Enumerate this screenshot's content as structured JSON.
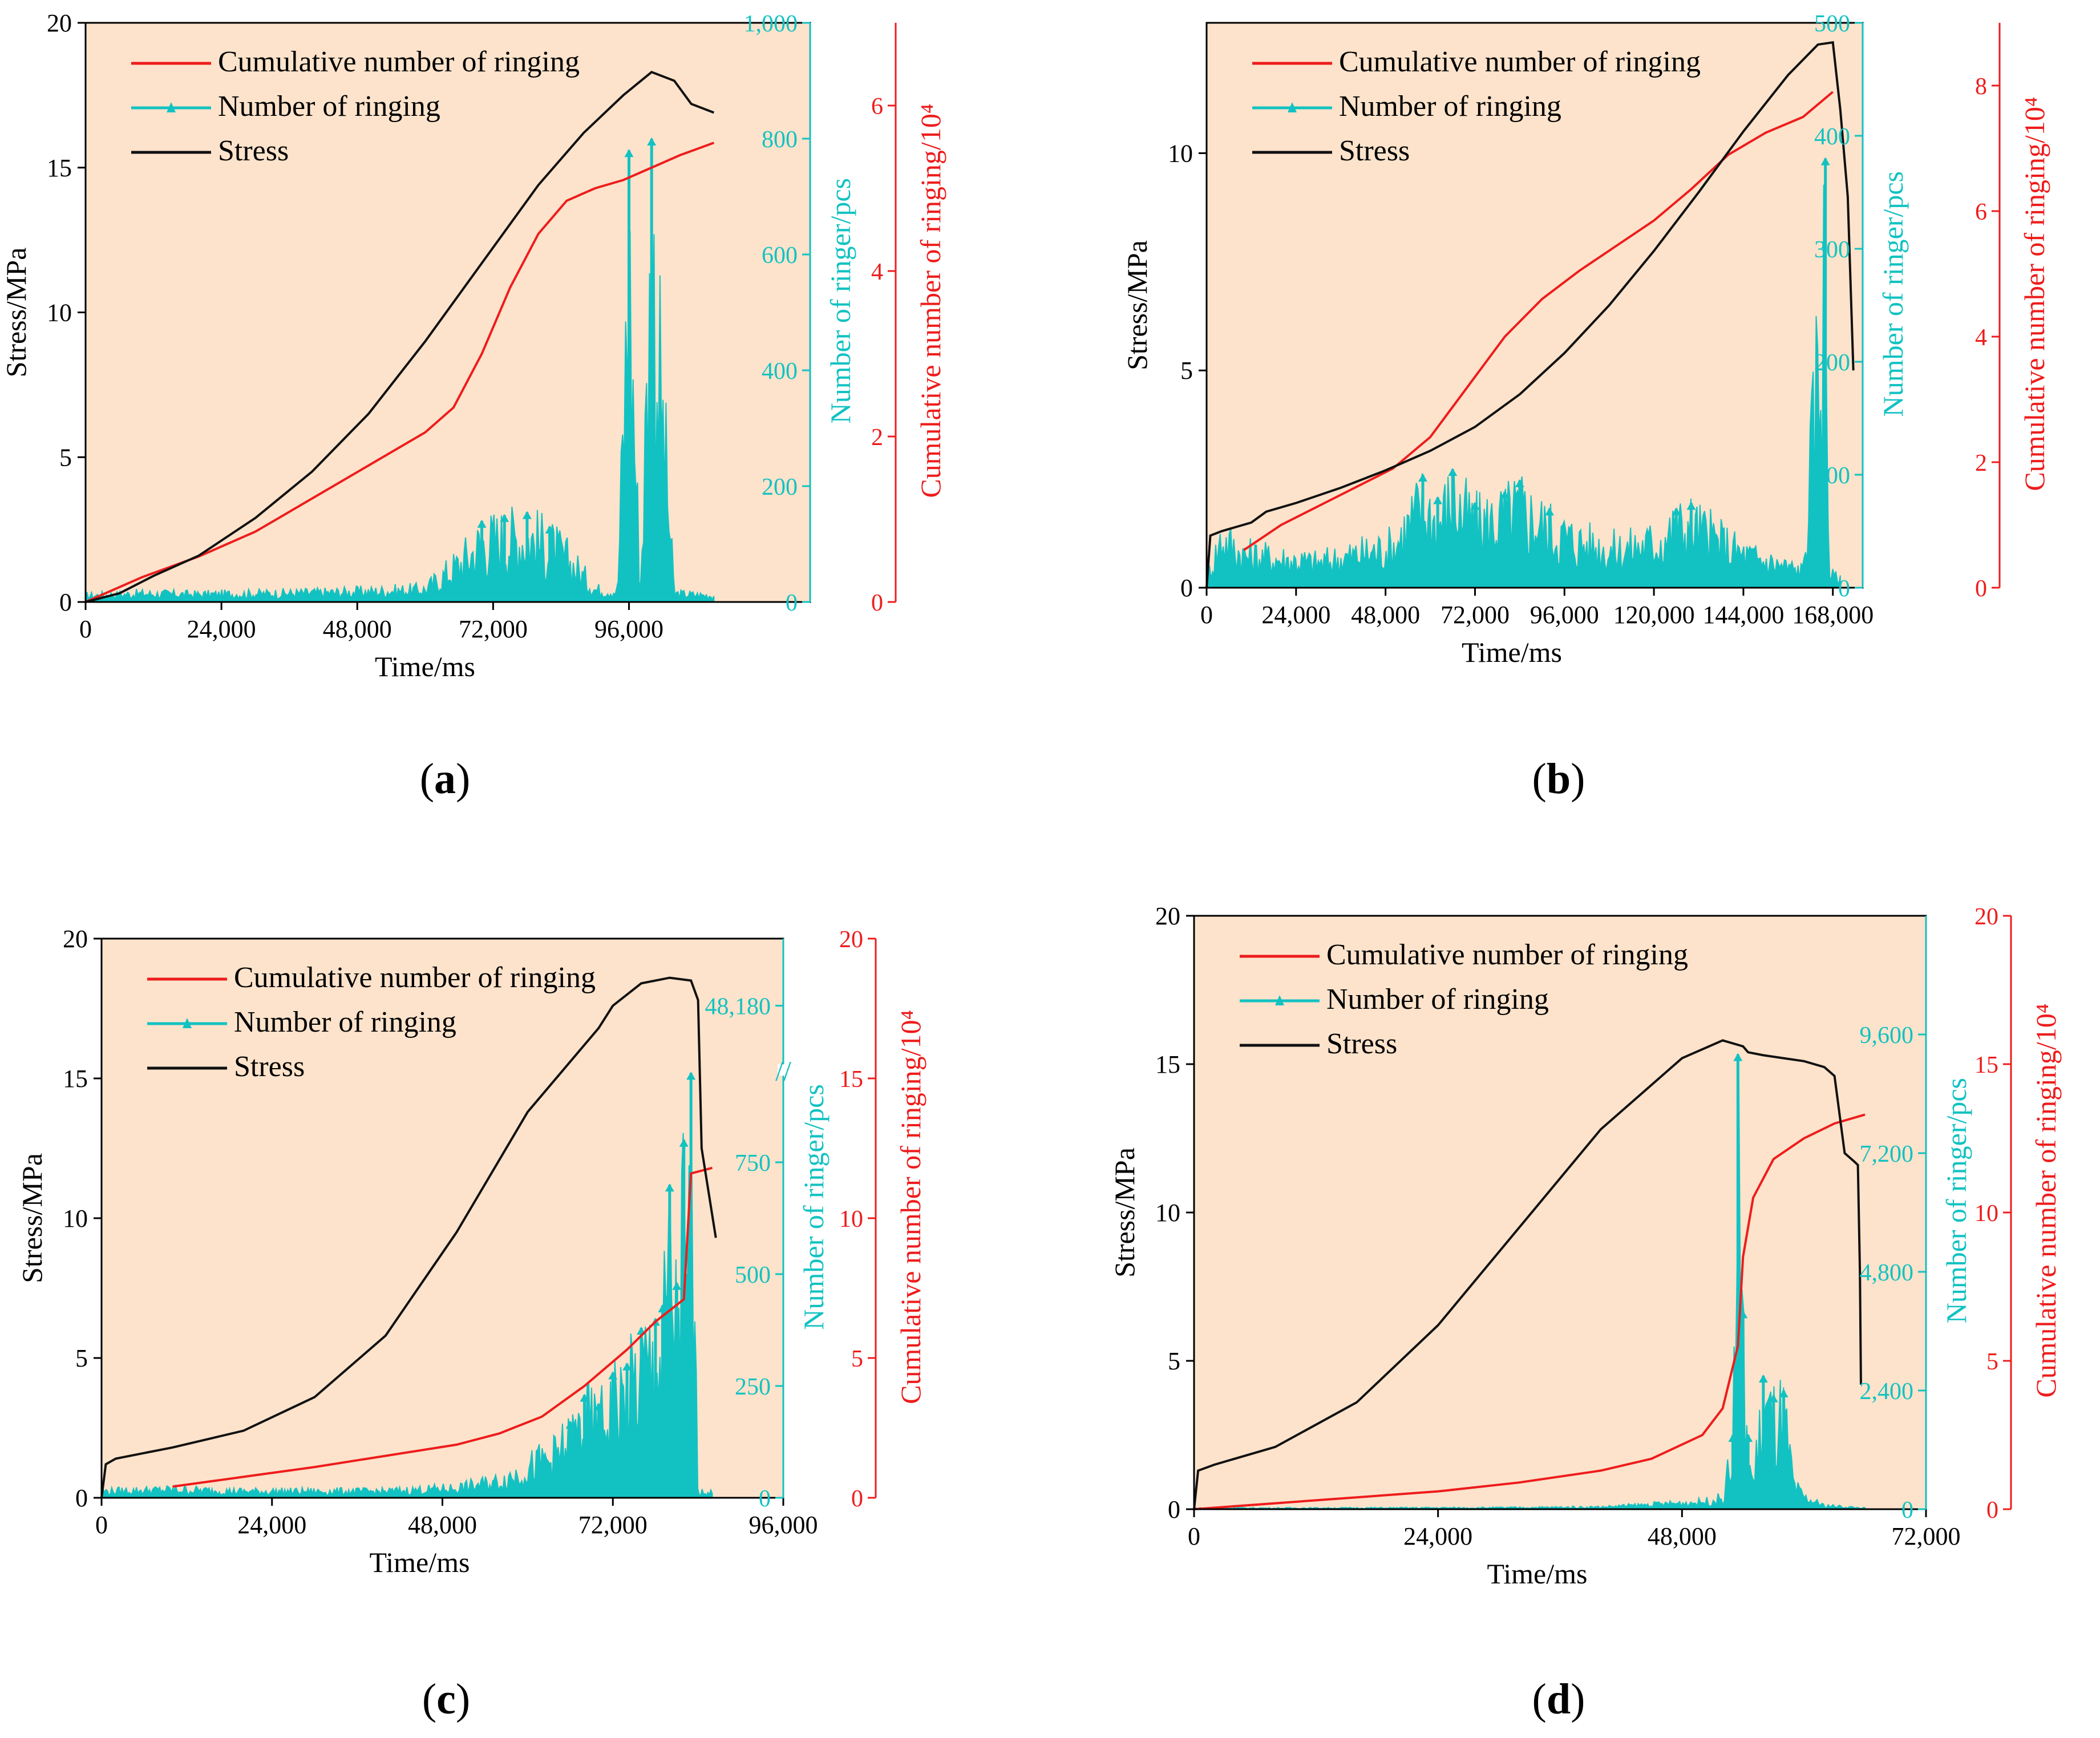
{
  "colors": {
    "background": "#fde3cb",
    "cumulative": "#ee1c1c",
    "ringing": "#12c2c2",
    "stress": "#111111",
    "axis": "#000000"
  },
  "panels": [
    {
      "id": "a",
      "caption": "a",
      "chart_data": {
        "type": "line",
        "title": "",
        "xlabel": "Time/ms",
        "ylabel": "Stress/MPa",
        "y2label": "Number of ringer/pcs",
        "y3label": "Cumulative number of ringing/10⁴",
        "xlim": [
          0,
          128000
        ],
        "ylim": [
          0,
          20
        ],
        "y2lim": [
          0,
          1000
        ],
        "y3lim": [
          0,
          7
        ],
        "xticks": [
          0,
          24000,
          48000,
          72000,
          96000
        ],
        "xtick_labels": [
          "0",
          "24,000",
          "48,000",
          "72,000",
          "96,000"
        ],
        "yticks": [
          0,
          5,
          10,
          15,
          20
        ],
        "ytick_labels": [
          "0",
          "5",
          "10",
          "15",
          "20"
        ],
        "y2ticks": [
          0,
          200,
          400,
          600,
          800,
          1000
        ],
        "y2tick_labels": [
          "0",
          "200",
          "400",
          "600",
          "800",
          "1,000"
        ],
        "y3ticks": [
          0,
          2,
          4,
          6
        ],
        "y3tick_labels": [
          "0",
          "2",
          "4",
          "6"
        ],
        "legend": [
          "Cumulative number of ringing",
          "Number of ringing",
          "Stress"
        ],
        "legend_position": "top-left",
        "series": [
          {
            "name": "Stress",
            "axis": "y",
            "x": [
              0,
              6000,
              12000,
              20000,
              30000,
              40000,
              50000,
              60000,
              70000,
              80000,
              88000,
              95000,
              100000,
              104000,
              107000,
              111000
            ],
            "y": [
              0,
              0.3,
              0.9,
              1.6,
              2.9,
              4.5,
              6.5,
              9.0,
              11.7,
              14.4,
              16.2,
              17.5,
              18.3,
              18.0,
              17.2,
              16.9
            ]
          },
          {
            "name": "Cumulative number of ringing",
            "axis": "y3",
            "x": [
              0,
              10000,
              20000,
              30000,
              40000,
              50000,
              60000,
              65000,
              70000,
              75000,
              80000,
              85000,
              90000,
              95000,
              100000,
              105000,
              111000
            ],
            "y": [
              0,
              0.3,
              0.55,
              0.85,
              1.25,
              1.65,
              2.05,
              2.35,
              3.0,
              3.8,
              4.45,
              4.85,
              5.0,
              5.1,
              5.25,
              5.4,
              5.55
            ]
          },
          {
            "name": "Number of ringing",
            "axis": "y2",
            "x": [
              0,
              10000,
              20000,
              30000,
              40000,
              50000,
              60000,
              66000,
              70000,
              74000,
              78000,
              82000,
              86000,
              90000,
              94000,
              96000,
              98000,
              100000,
              104000,
              111000
            ],
            "y": [
              15,
              20,
              18,
              20,
              22,
              25,
              30,
              90,
              140,
              150,
              155,
              130,
              90,
              30,
              25,
              780,
              30,
              800,
              20,
              15
            ]
          }
        ]
      }
    },
    {
      "id": "b",
      "caption": "b",
      "chart_data": {
        "type": "line",
        "title": "",
        "xlabel": "Time/ms",
        "ylabel": "Stress/MPa",
        "y2label": "Number of ringer/pcs",
        "y3label": "Cumulative number of ringing/10⁴",
        "xlim": [
          0,
          176000
        ],
        "ylim": [
          0,
          13
        ],
        "y2lim": [
          0,
          500
        ],
        "y3lim": [
          0,
          9
        ],
        "xticks": [
          0,
          24000,
          48000,
          72000,
          96000,
          120000,
          144000,
          168000
        ],
        "xtick_labels": [
          "0",
          "24,000",
          "48,000",
          "72,000",
          "96,000",
          "120,000",
          "144,000",
          "168,000"
        ],
        "yticks": [
          0,
          5,
          10
        ],
        "ytick_labels": [
          "0",
          "5",
          "10"
        ],
        "y2ticks": [
          0,
          100,
          200,
          300,
          400,
          500
        ],
        "y2tick_labels": [
          "0",
          "100",
          "200",
          "300",
          "400",
          "500"
        ],
        "y3ticks": [
          0,
          2,
          4,
          6,
          8
        ],
        "y3tick_labels": [
          "0",
          "2",
          "4",
          "6",
          "8"
        ],
        "legend": [
          "Cumulative number of ringing",
          "Number of ringing",
          "Stress"
        ],
        "legend_position": "top-left",
        "series": [
          {
            "name": "Stress",
            "axis": "y",
            "x": [
              0,
              1000,
              4000,
              8000,
              12000,
              16000,
              24000,
              36000,
              48000,
              60000,
              72000,
              84000,
              96000,
              108000,
              120000,
              132000,
              144000,
              156000,
              164000,
              168000,
              170000,
              172000,
              173500
            ],
            "y": [
              0,
              1.2,
              1.3,
              1.4,
              1.5,
              1.75,
              1.95,
              2.3,
              2.7,
              3.15,
              3.7,
              4.45,
              5.4,
              6.5,
              7.75,
              9.1,
              10.5,
              11.8,
              12.5,
              12.55,
              11.0,
              9.0,
              5.0
            ]
          },
          {
            "name": "Cumulative number of ringing",
            "axis": "y3",
            "x": [
              10000,
              20000,
              30000,
              40000,
              50000,
              60000,
              70000,
              80000,
              90000,
              100000,
              110000,
              120000,
              130000,
              140000,
              150000,
              160000,
              168000
            ],
            "y": [
              0.6,
              1.0,
              1.3,
              1.6,
              1.9,
              2.4,
              3.2,
              4.0,
              4.6,
              5.05,
              5.45,
              5.85,
              6.35,
              6.9,
              7.25,
              7.5,
              7.9
            ]
          },
          {
            "name": "Number of ringing",
            "axis": "y2",
            "x": [
              0,
              4000,
              10000,
              20000,
              30000,
              40000,
              50000,
              58000,
              62000,
              66000,
              72000,
              80000,
              84000,
              92000,
              100000,
              110000,
              120000,
              126000,
              130000,
              136000,
              144000,
              152000,
              160000,
              166000,
              167000,
              168000,
              170000
            ],
            "y": [
              10,
              60,
              40,
              35,
              30,
              40,
              50,
              100,
              80,
              105,
              75,
              85,
              95,
              70,
              55,
              45,
              55,
              70,
              75,
              60,
              40,
              30,
              20,
              380,
              20,
              15,
              10
            ]
          }
        ]
      }
    },
    {
      "id": "c",
      "caption": "c",
      "chart_data": {
        "type": "line",
        "title": "",
        "xlabel": "Time/ms",
        "ylabel": "Stress/MPa",
        "y2label": "Number of ringer/pcs",
        "y3label": "Cumulative number of ringing/10⁴",
        "xlim": [
          0,
          96000
        ],
        "ylim": [
          0,
          20
        ],
        "y2lim": [
          0,
          1250
        ],
        "y3lim": [
          0,
          20
        ],
        "y2_axis_break": "//",
        "xticks": [
          0,
          24000,
          48000,
          72000,
          96000
        ],
        "xtick_labels": [
          "0",
          "24,000",
          "48,000",
          "72,000",
          "96,000"
        ],
        "yticks": [
          0,
          5,
          10,
          15,
          20
        ],
        "ytick_labels": [
          "0",
          "5",
          "10",
          "15",
          "20"
        ],
        "y2ticks": [
          0,
          250,
          500,
          750,
          48180
        ],
        "y2tick_labels": [
          "0",
          "250",
          "500",
          "750",
          "48,180"
        ],
        "y3ticks": [
          0,
          5,
          10,
          15,
          20
        ],
        "y3tick_labels": [
          "0",
          "5",
          "10",
          "15",
          "20"
        ],
        "legend": [
          "Cumulative number of ringing",
          "Number of ringing",
          "Stress"
        ],
        "legend_position": "top-left",
        "series": [
          {
            "name": "Stress",
            "axis": "y",
            "x": [
              0,
              600,
              2000,
              10000,
              20000,
              30000,
              40000,
              50000,
              60000,
              70000,
              72000,
              76000,
              80000,
              83000,
              84000,
              84500,
              86500
            ],
            "y": [
              0,
              1.2,
              1.4,
              1.8,
              2.4,
              3.6,
              5.8,
              9.5,
              13.8,
              16.8,
              17.6,
              18.4,
              18.6,
              18.5,
              17.8,
              12.5,
              9.3
            ]
          },
          {
            "name": "Cumulative number of ringing",
            "axis": "y3",
            "x": [
              10000,
              20000,
              30000,
              40000,
              50000,
              56000,
              62000,
              68000,
              74000,
              78000,
              82000,
              83000,
              86000
            ],
            "y": [
              0.4,
              0.75,
              1.1,
              1.5,
              1.9,
              2.3,
              2.9,
              4.0,
              5.3,
              6.3,
              7.1,
              11.6,
              11.8
            ]
          },
          {
            "name": "Number of ringing",
            "axis": "y2",
            "x": [
              0,
              10000,
              20000,
              30000,
              40000,
              50000,
              56000,
              60000,
              64000,
              66000,
              68000,
              70000,
              72000,
              74000,
              76000,
              78000,
              79000,
              80000,
              81000,
              82000,
              82500,
              83000,
              84000,
              86000
            ],
            "y": [
              20,
              25,
              20,
              20,
              20,
              30,
              50,
              90,
              130,
              170,
              230,
              210,
              280,
              300,
              380,
              400,
              430,
              700,
              480,
              800,
              500,
              950,
              20,
              15
            ]
          }
        ]
      }
    },
    {
      "id": "d",
      "caption": "d",
      "chart_data": {
        "type": "line",
        "title": "",
        "xlabel": "Time/ms",
        "ylabel": "Stress/MPa",
        "y2label": "Number of ringer/pcs",
        "y3label": "Cumulative number of ringing/10⁴",
        "xlim": [
          0,
          72000
        ],
        "ylim": [
          0,
          20
        ],
        "y2lim": [
          0,
          12000
        ],
        "y3lim": [
          0,
          20
        ],
        "xticks": [
          0,
          24000,
          48000,
          72000
        ],
        "xtick_labels": [
          "0",
          "24,000",
          "48,000",
          "72,000"
        ],
        "yticks": [
          0,
          5,
          10,
          15,
          20
        ],
        "ytick_labels": [
          "0",
          "5",
          "10",
          "15",
          "20"
        ],
        "y2ticks": [
          0,
          2400,
          4800,
          7200,
          9600
        ],
        "y2tick_labels": [
          "0",
          "2,400",
          "4,800",
          "7,200",
          "9,600"
        ],
        "y3ticks": [
          0,
          5,
          10,
          15,
          20
        ],
        "y3tick_labels": [
          "0",
          "5",
          "10",
          "15",
          "20"
        ],
        "legend": [
          "Cumulative number of ringing",
          "Number of ringing",
          "Stress"
        ],
        "legend_position": "top-left",
        "series": [
          {
            "name": "Stress",
            "axis": "y",
            "x": [
              0,
              400,
              2000,
              8000,
              16000,
              24000,
              32000,
              40000,
              48000,
              52000,
              54000,
              54500,
              56000,
              58000,
              60000,
              62000,
              63000,
              64000,
              65000,
              65300,
              65500,
              65600
            ],
            "y": [
              0,
              1.3,
              1.5,
              2.1,
              3.6,
              6.2,
              9.5,
              12.8,
              15.2,
              15.8,
              15.6,
              15.4,
              15.3,
              15.2,
              15.1,
              14.9,
              14.6,
              12.0,
              11.7,
              11.6,
              8.0,
              4.2
            ]
          },
          {
            "name": "Cumulative number of ringing",
            "axis": "y3",
            "x": [
              0,
              8000,
              16000,
              24000,
              32000,
              40000,
              45000,
              50000,
              52000,
              53500,
              54000,
              55000,
              57000,
              60000,
              63000,
              66000
            ],
            "y": [
              0,
              0.2,
              0.4,
              0.6,
              0.9,
              1.3,
              1.7,
              2.5,
              3.4,
              5.5,
              8.5,
              10.5,
              11.8,
              12.5,
              13.0,
              13.3
            ]
          },
          {
            "name": "Number of ringing",
            "axis": "y2",
            "x": [
              0,
              10000,
              20000,
              30000,
              40000,
              50000,
              52000,
              53000,
              53500,
              54000,
              54500,
              55000,
              56000,
              57000,
              58000,
              59000,
              60000,
              62000,
              66000
            ],
            "y": [
              30,
              30,
              35,
              40,
              60,
              200,
              300,
              1500,
              9200,
              4000,
              1500,
              700,
              2700,
              2300,
              2400,
              600,
              300,
              100,
              30
            ]
          }
        ]
      }
    }
  ]
}
